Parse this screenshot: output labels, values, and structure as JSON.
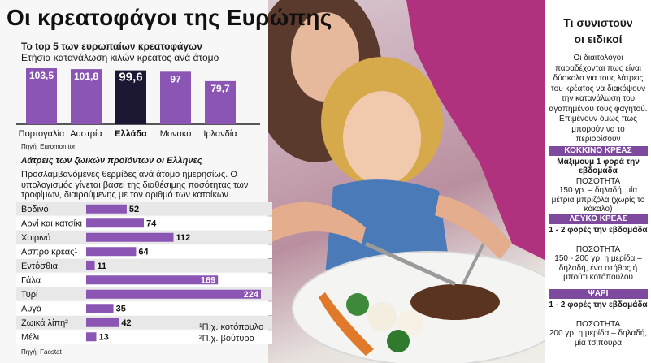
{
  "title": "Οι κρεατοφάγοι της Ευρώπης",
  "top5": {
    "title": "Το top 5 των ευρωπαίων κρεατοφάγων",
    "subtitle": "Ετήσια κατανάλωση κιλών κρέατος ανά άτομο",
    "source": "Πηγή: Euromonitor"
  },
  "daily": {
    "title": "Λάτρεις των ζωικών προϊόντων οι Ελληνες",
    "description": "Προσλαμβανόμενες θερμίδες ανά άτομο ημερησίως. Ο υπολογισμός γίνεται βάσει της διαθέσιμης ποσότητας των τροφίμων, διαιρούμενης με τον αριθμό των κατοίκων",
    "footnote1": "¹Π.χ. κοτόπουλο",
    "footnote2": "²Π.χ. βούτυρο",
    "source": "Πηγή: Faostat"
  },
  "chart_data": [
    {
      "type": "bar",
      "orientation": "vertical",
      "categories": [
        "Πορτογαλία",
        "Αυστρία",
        "Ελλάδα",
        "Μονακό",
        "Ιρλανδία"
      ],
      "values": [
        103.5,
        101.8,
        99.6,
        97,
        79.7
      ],
      "value_labels": [
        "103,5",
        "101,8",
        "99,6",
        "97",
        "79,7"
      ],
      "title": "Το top 5 των ευρωπαίων κρεατοφάγων",
      "highlight": "Ελλάδα",
      "colors": {
        "bar": "#8b55b3",
        "highlight": "#1c1733",
        "label": "#ffffff"
      }
    },
    {
      "type": "bar",
      "orientation": "horizontal",
      "categories": [
        "Βοδινό",
        "Αρνί και κατσίκι",
        "Χοιρινό",
        "Ασπρο κρέας¹",
        "Εντόσθια",
        "Γάλα",
        "Τυρί",
        "Αυγά",
        "Ζωικά λίπη²",
        "Μέλι"
      ],
      "values": [
        52,
        74,
        112,
        64,
        11,
        169,
        224,
        35,
        42,
        13
      ],
      "title": "Λάτρεις των ζωικών προϊόντων οι Ελληνες",
      "colors": {
        "bar": "#8b55b3",
        "row_alt": "#e8e8e8",
        "row": "#ffffff"
      }
    }
  ],
  "panel": {
    "title_line1": "Τι συνιστούν",
    "title_line2": "οι ειδικοί",
    "intro": "Οι διαιτολόγοι παραδέχονται πως είναι δύσκολο για τους λάτρεις του κρέατος να διακόψουν την κατανάλωση του αγαπημένου τους φαγητού. Επιμένουν όμως πως μπορούν να το περιορίσουν",
    "sections": [
      {
        "label": "ΚΟΚΚΙΝΟ ΚΡΕΑΣ",
        "frequency": "Μάξιμουμ 1 φορά την εβδομάδα",
        "quantity_label": "ΠΟΣΟΤΗΤΑ",
        "quantity": "150 γρ. – δηλαδή, μία μέτρια μπριζόλα (χωρίς το κόκαλο)"
      },
      {
        "label": "ΛΕΥΚΟ ΚΡΕΑΣ",
        "frequency": "1 - 2 φορές την εβδομάδα",
        "quantity_label": "ΠΟΣΟΤΗΤΑ",
        "quantity": "150 - 200 γρ. η μερίδα – δηλαδή, ένα στήθος ή μπούτι κοτόπουλου"
      },
      {
        "label": "ΨΑΡΙ",
        "frequency": "1 - 2 φορές την εβδομάδα",
        "quantity_label": "ΠΟΣΟΤΗΤΑ",
        "quantity": "200 γρ. η μερίδα – δηλαδή, μία τσιπούρα"
      }
    ]
  }
}
